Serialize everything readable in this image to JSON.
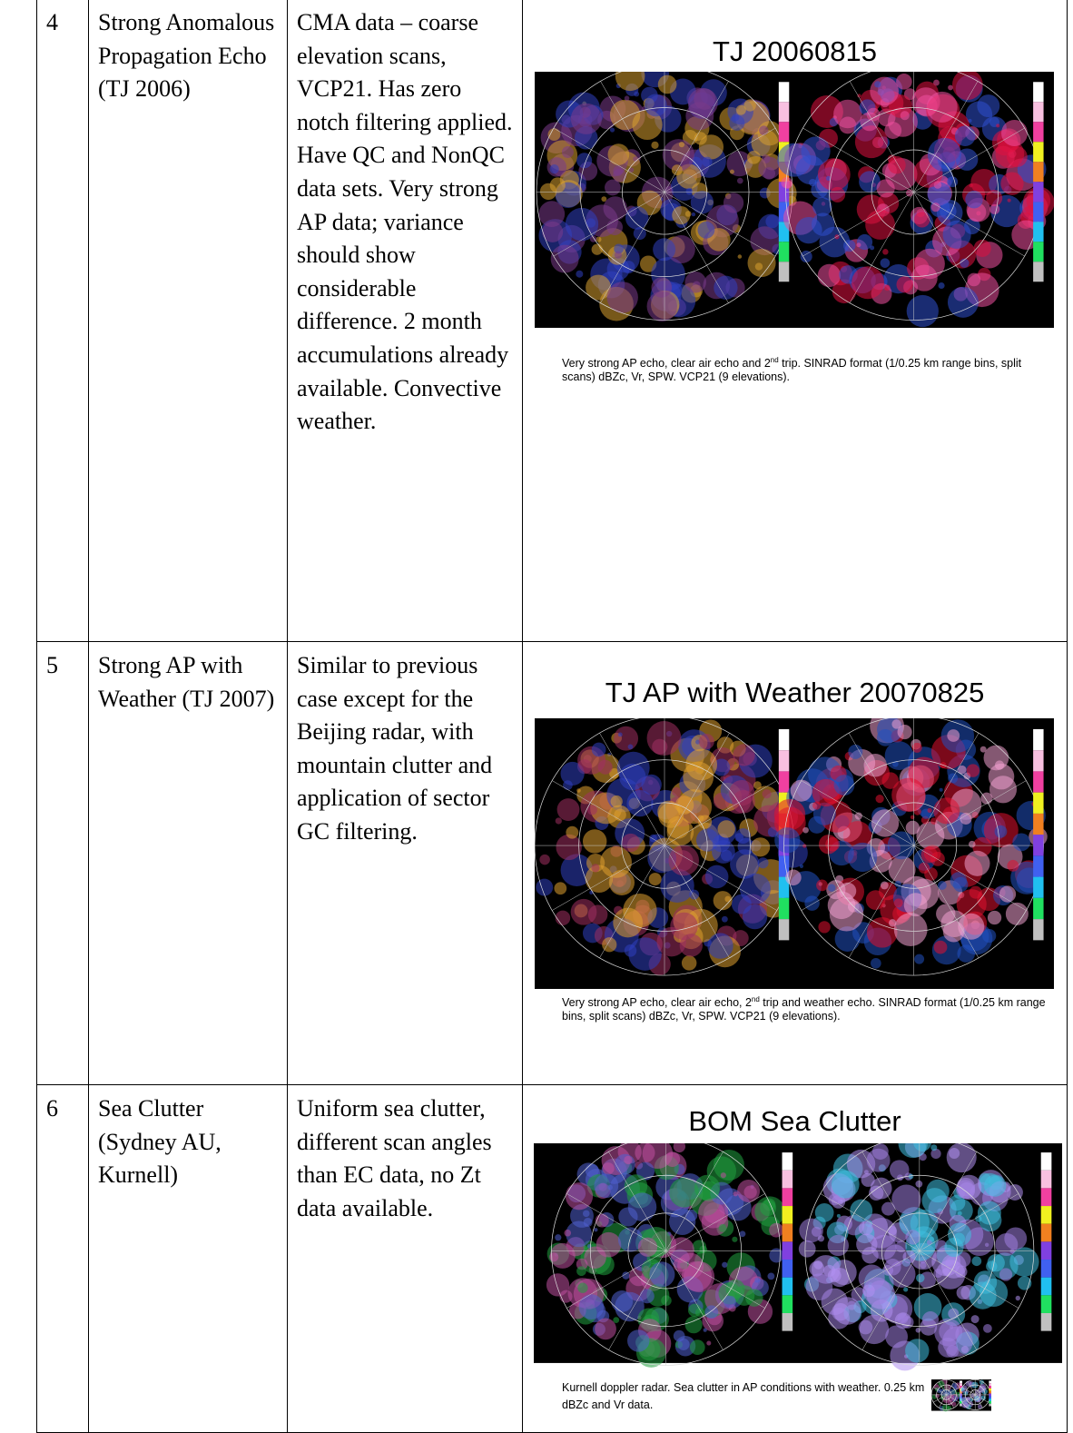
{
  "table": {
    "rows": [
      {
        "num": "4",
        "case": "Strong Anomalous Propagation Echo (TJ 2006)",
        "notes": "CMA data – coarse elevation scans, VCP21. Has zero notch filtering applied. Have QC and NonQC data sets.  Very strong AP data; variance should show considerable difference.  2 month accumulations already available. Convective weather.",
        "figure": {
          "title": "TJ 20060815",
          "caption": {
            "before": "Very strong AP echo, clear air echo and 2",
            "sup": "nd",
            "after": " trip.  SINRAD format (1/0.25 km range bins, split scans) dBZc, Vr, SPW.  VCP21 (9 elevations)."
          }
        }
      },
      {
        "num": "5",
        "case": "Strong AP with Weather (TJ 2007)",
        "notes": "Similar to previous case except for the Beijing radar, with mountain clutter and application of sector GC filtering.",
        "figure": {
          "title": "TJ AP with Weather 20070825",
          "caption": {
            "before": "Very strong AP echo, clear air echo, 2",
            "sup": "nd",
            "after": " trip and weather echo.  SINRAD format (1/0.25 km range bins, split scans) dBZc, Vr, SPW.  VCP21 (9 elevations)."
          }
        }
      },
      {
        "num": "6",
        "case": "Sea Clutter (Sydney AU, Kurnell)",
        "notes": "Uniform sea clutter, different scan angles than EC data, no Zt data available.",
        "figure": {
          "title": "BOM Sea Clutter",
          "caption": {
            "before": "Kurnell doppler radar.  Sea clutter in AP conditions with weather.  0.25 km dBZc and Vr data.",
            "sup": "",
            "after": ""
          }
        }
      }
    ]
  }
}
